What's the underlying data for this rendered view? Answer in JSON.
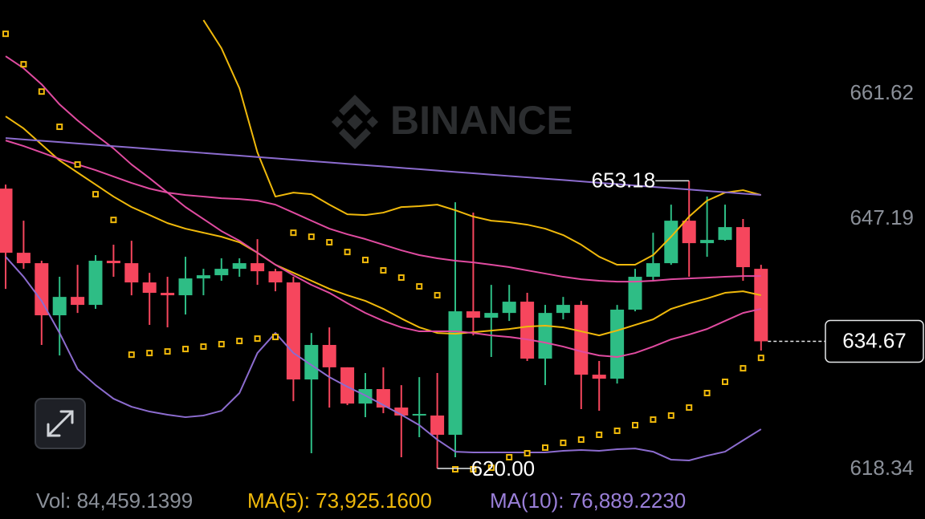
{
  "chart_data": {
    "type": "candlestick",
    "watermark": "BINANCE",
    "up_color": "#2ebd85",
    "down_color": "#f6465d",
    "open": [
      652.28,
      644.88,
      643.68,
      637.67,
      639.79,
      638.87,
      643.96,
      643.68,
      641.46,
      640.26,
      639.98,
      641.92,
      642.29,
      643.03,
      643.68,
      642.75,
      641.46,
      630.27,
      634.25,
      631.67,
      627.49,
      629.16,
      627.03,
      626.11,
      626.11,
      623.89,
      638.13,
      637.39,
      637.94,
      639.24,
      632.67,
      637.94,
      638.87,
      630.82,
      630.36,
      638.32,
      642.11,
      643.68,
      648.58,
      645.99,
      646.36,
      647.84,
      643.03
    ],
    "high": [
      652.74,
      648.58,
      643.96,
      642.11,
      643.49,
      644.61,
      645.81,
      646.27,
      642.57,
      642.11,
      644.42,
      643.03,
      644.24,
      644.24,
      646.45,
      643.03,
      642.11,
      635.63,
      636.28,
      631.67,
      631.01,
      631.67,
      629.62,
      630.54,
      631.01,
      650.71,
      649.51,
      641.18,
      641.18,
      640.26,
      638.87,
      639.79,
      639.33,
      632.4,
      638.87,
      643.03,
      647.19,
      650.43,
      653.18,
      651.36,
      650.43,
      648.77,
      643.49
    ],
    "low": [
      640.72,
      643.03,
      634.25,
      633.04,
      637.94,
      638.41,
      642.11,
      639.98,
      636.56,
      636.28,
      637.76,
      639.98,
      641.65,
      642.11,
      641.18,
      640.44,
      627.77,
      621.76,
      627.03,
      627.31,
      625.92,
      626.38,
      621.3,
      623.61,
      620.0,
      621.3,
      635.35,
      632.86,
      637.02,
      632.4,
      629.62,
      637.2,
      626.85,
      626.66,
      629.8,
      638.13,
      641.65,
      643.49,
      642.11,
      644.42,
      646.27,
      641.65,
      633.6
    ],
    "close": [
      644.88,
      643.68,
      637.67,
      639.79,
      638.87,
      643.96,
      643.68,
      641.46,
      640.26,
      639.98,
      641.92,
      642.29,
      643.03,
      643.68,
      642.75,
      641.46,
      630.27,
      634.25,
      631.67,
      627.49,
      629.16,
      627.03,
      626.11,
      626.29,
      623.89,
      638.13,
      637.39,
      637.94,
      639.24,
      632.67,
      637.94,
      638.87,
      630.82,
      630.36,
      638.32,
      642.11,
      643.68,
      648.58,
      645.99,
      646.36,
      647.84,
      643.22,
      634.67
    ],
    "overlays": [
      {
        "color": "#f0b90b",
        "values": [
          null,
          null,
          null,
          null,
          null,
          null,
          null,
          null,
          null,
          null,
          null,
          671.71,
          668.47,
          663.85,
          656.45,
          651.36,
          651.82,
          651.63,
          650.43,
          649.32,
          649.23,
          649.51,
          650.15,
          650.25,
          650.43,
          649.79,
          649.05,
          648.58,
          648.4,
          648.12,
          647.66,
          646.92,
          645.81,
          644.42,
          643.5,
          643.5,
          644.61,
          646.73,
          649.05,
          650.89,
          651.82,
          652.1,
          651.54
        ]
      },
      {
        "color": "#f0b90b",
        "values": [
          660.61,
          659.22,
          657.37,
          655.52,
          654.13,
          652.75,
          651.36,
          650.15,
          649.23,
          648.3,
          647.66,
          647.19,
          646.73,
          646.09,
          644.88,
          643.5,
          642.57,
          641.65,
          640.72,
          639.98,
          639.33,
          638.41,
          637.3,
          636.28,
          635.63,
          635.54,
          635.72,
          635.91,
          636.09,
          636.37,
          636.47,
          636.28,
          635.82,
          635.35,
          635.91,
          636.56,
          637.2,
          638.41,
          639.06,
          639.61,
          640.26,
          640.44,
          639.98
        ]
      },
      {
        "color": "#8c6ccf",
        "values": [
          644.42,
          642.11,
          639.33,
          635.63,
          631.47,
          629.62,
          628.05,
          627.12,
          626.57,
          626.2,
          625.92,
          626.11,
          626.66,
          628.7,
          633.32,
          635.63,
          633.32,
          631.93,
          630.54,
          629.43,
          628.42,
          627.31,
          626.2,
          625.0,
          623.33,
          621.94,
          621.85,
          621.85,
          621.85,
          621.85,
          621.85,
          622.04,
          622.13,
          622.04,
          622.22,
          622.31,
          621.94,
          621.02,
          620.93,
          621.48,
          621.94,
          623.24,
          624.53
        ]
      },
      {
        "color": "#e04ba0",
        "values": [
          667.55,
          666.16,
          664.31,
          661.99,
          660.14,
          658.48,
          656.91,
          655.06,
          653.49,
          651.82,
          650.15,
          648.77,
          647.38,
          646.27,
          644.88,
          643.5,
          642.29,
          641.18,
          640.26,
          639.06,
          637.94,
          637.02,
          636.28,
          635.82,
          635.82,
          635.82,
          635.63,
          635.35,
          635.17,
          634.89,
          634.52,
          634.06,
          633.5,
          633.04,
          632.86,
          633.32,
          634.06,
          634.89,
          635.45,
          636.09,
          637.02,
          637.94,
          638.41
        ]
      },
      {
        "color": "#e04ba0",
        "values": [
          657.83,
          657.19,
          656.45,
          655.7,
          655.06,
          654.41,
          653.67,
          652.93,
          652.28,
          651.82,
          651.54,
          651.36,
          651.17,
          651.08,
          650.89,
          650.43,
          649.51,
          648.58,
          647.66,
          647.01,
          646.46,
          645.81,
          645.16,
          644.61,
          644.24,
          643.96,
          643.77,
          643.5,
          643.22,
          642.85,
          642.48,
          642.11,
          641.83,
          641.65,
          641.55,
          641.55,
          641.65,
          641.83,
          641.92,
          642.01,
          642.11,
          642.2,
          642.2
        ]
      },
      {
        "color": "#8c6ccf",
        "values": [
          658.11,
          657.95,
          657.8,
          657.64,
          657.48,
          657.33,
          657.17,
          657.02,
          656.86,
          656.7,
          656.55,
          656.39,
          656.23,
          656.08,
          655.92,
          655.77,
          655.61,
          655.45,
          655.3,
          655.14,
          654.98,
          654.83,
          654.67,
          654.52,
          654.36,
          654.2,
          654.05,
          653.89,
          653.73,
          653.58,
          653.42,
          653.27,
          653.11,
          652.95,
          652.8,
          652.64,
          652.48,
          652.33,
          652.17,
          652.01,
          651.86,
          651.7,
          651.55
        ]
      }
    ],
    "sar": {
      "color": "#f0b90b",
      "values": [
        670.13,
        666.62,
        663.47,
        659.41,
        655.06,
        651.63,
        648.67,
        633.13,
        633.32,
        633.5,
        633.78,
        634.06,
        634.34,
        634.71,
        634.98,
        635.17,
        647.19,
        646.73,
        646.09,
        644.97,
        644.05,
        642.85,
        642.02,
        641.0,
        639.98,
        619.91,
        619.91,
        620.09,
        621.3,
        621.76,
        622.41,
        622.96,
        623.33,
        623.89,
        624.35,
        625.0,
        625.64,
        626.11,
        627.03,
        628.7,
        630.0,
        631.56,
        632.76
      ]
    },
    "ylim": [
      618.34,
      674.03
    ],
    "yticks": [
      661.62,
      647.19,
      618.34
    ],
    "high_label": "653.18",
    "low_label": "620.00",
    "last_price_label": "634.67",
    "indicators": [
      {
        "text": "Vol: 84,459.1399",
        "color": "#8a8f98"
      },
      {
        "text": "MA(5): 73,925.1600",
        "color": "#f0b90b"
      },
      {
        "text": "MA(10): 76,889.2230",
        "color": "#9a7fd8"
      }
    ]
  }
}
